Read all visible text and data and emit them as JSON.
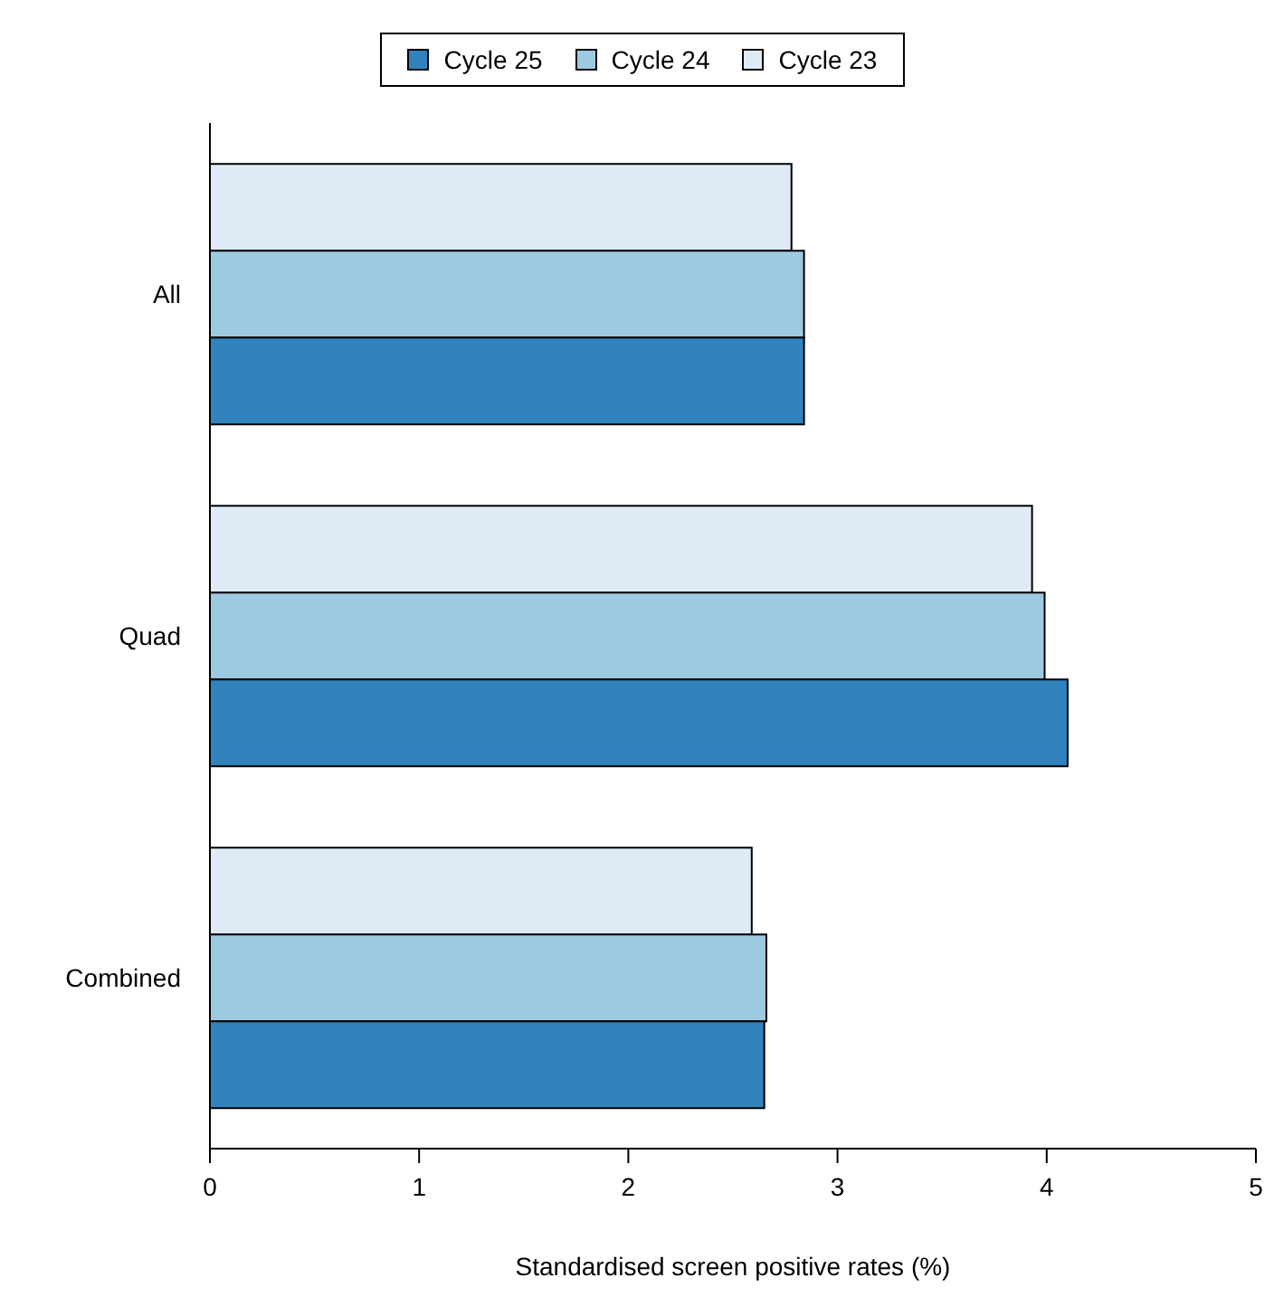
{
  "chart_data": {
    "type": "bar",
    "orientation": "horizontal",
    "xlabel": "Standardised screen positive rates (%)",
    "categories": [
      "All",
      "Quad",
      "Combined"
    ],
    "series": [
      {
        "name": "Cycle 25",
        "color": "#3182bd",
        "values": [
          2.84,
          4.1,
          2.65
        ]
      },
      {
        "name": "Cycle 24",
        "color": "#9ecae1",
        "values": [
          2.84,
          3.99,
          2.66
        ]
      },
      {
        "name": "Cycle 23",
        "color": "#deebf7",
        "values": [
          2.78,
          3.93,
          2.59
        ]
      }
    ],
    "xlim": [
      0,
      5
    ],
    "xticks": [
      0,
      1,
      2,
      3,
      4,
      5
    ],
    "grid": false,
    "legend": "top"
  }
}
